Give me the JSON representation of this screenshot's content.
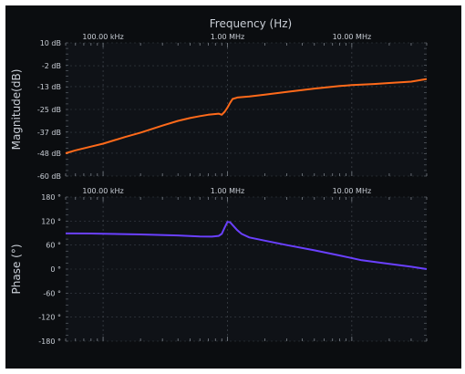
{
  "chart_data": [
    {
      "type": "line",
      "title": "Frequency (Hz)",
      "xlabel": "",
      "ylabel": "Magnitude(dB)",
      "xscale": "log",
      "xlim": [
        50000,
        40000000
      ],
      "ylim": [
        -60,
        10
      ],
      "grid": true,
      "x_tick_labels": [
        "100.00 kHz",
        "1.00 MHz",
        "10.00 MHz"
      ],
      "x_tick_values": [
        100000,
        1000000,
        10000000
      ],
      "y_tick_labels": [
        "10 dB",
        "-2 dB",
        "-13 dB",
        "-25 dB",
        "-37 dB",
        "-48 dB",
        "-60 dB"
      ],
      "y_tick_values": [
        10,
        -2,
        -13,
        -25,
        -37,
        -48,
        -60
      ],
      "series": [
        {
          "color": "#ff6a1a",
          "x": [
            50000,
            60000,
            80000,
            100000,
            150000,
            200000,
            300000,
            400000,
            500000,
            600000,
            700000,
            800000,
            850000,
            900000,
            950000,
            1000000,
            1050000,
            1100000,
            1200000,
            1500000,
            2000000,
            3000000,
            5000000,
            8000000,
            10000000,
            15000000,
            20000000,
            30000000,
            40000000
          ],
          "y": [
            -48,
            -46.5,
            -44.5,
            -43,
            -39.5,
            -37.2,
            -33.5,
            -31,
            -29.5,
            -28.5,
            -27.8,
            -27.4,
            -27.2,
            -27.8,
            -26.2,
            -24,
            -21.5,
            -19.5,
            -18.7,
            -18.2,
            -17.2,
            -15.8,
            -14,
            -12.7,
            -12.2,
            -11.6,
            -11.1,
            -10.4,
            -9
          ]
        }
      ]
    },
    {
      "type": "line",
      "title": "",
      "xlabel": "",
      "ylabel": "Phase (°)",
      "xscale": "log",
      "xlim": [
        50000,
        40000000
      ],
      "ylim": [
        -180,
        180
      ],
      "grid": true,
      "x_tick_labels": [
        "100.00 kHz",
        "1.00 MHz",
        "10.00 MHz"
      ],
      "x_tick_values": [
        100000,
        1000000,
        10000000
      ],
      "y_tick_labels": [
        "180 °",
        "120 °",
        "60 °",
        "0 °",
        "-60 °",
        "-120 °",
        "-180 °"
      ],
      "y_tick_values": [
        180,
        120,
        60,
        0,
        -60,
        -120,
        -180
      ],
      "series": [
        {
          "color": "#6a40ff",
          "x": [
            50000,
            80000,
            100000,
            200000,
            400000,
            600000,
            750000,
            850000,
            900000,
            950000,
            1000000,
            1050000,
            1100000,
            1200000,
            1300000,
            1500000,
            2000000,
            3000000,
            5000000,
            8000000,
            12000000,
            20000000,
            30000000,
            40000000
          ],
          "y": [
            89,
            88.8,
            88.5,
            86.5,
            84,
            81.5,
            81,
            83,
            88,
            104,
            118,
            117,
            110,
            97,
            88,
            79,
            71,
            60,
            47,
            34,
            22,
            13,
            6,
            0
          ]
        }
      ]
    }
  ]
}
